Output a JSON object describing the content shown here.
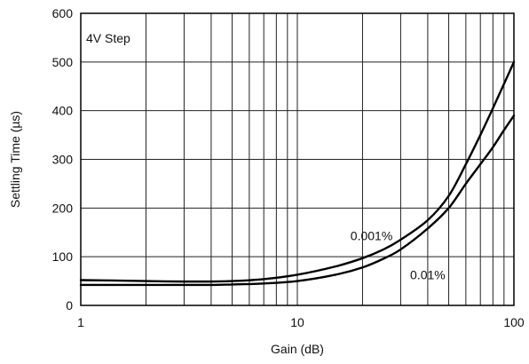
{
  "chart_data": {
    "type": "line",
    "xlabel": "Gain (dB)",
    "ylabel": "Settling Time (µs)",
    "annotation": "4V Step",
    "x_scale": "log",
    "xlim": [
      1,
      100
    ],
    "ylim": [
      0,
      600
    ],
    "x_ticks": [
      "1",
      "10",
      "100"
    ],
    "y_ticks": [
      "0",
      "100",
      "200",
      "300",
      "400",
      "500",
      "600"
    ],
    "grid": true,
    "series": [
      {
        "name": "0.001%",
        "x": [
          1,
          1.5,
          2,
          3,
          4,
          5,
          7,
          10,
          15,
          20,
          25,
          30,
          40,
          50,
          60,
          70,
          80,
          90,
          100
        ],
        "y": [
          52,
          51,
          50,
          49,
          49,
          50,
          54,
          63,
          80,
          97,
          115,
          135,
          175,
          225,
          290,
          350,
          405,
          455,
          500
        ]
      },
      {
        "name": "0.01%",
        "x": [
          1,
          1.5,
          2,
          3,
          4,
          5,
          7,
          10,
          15,
          20,
          25,
          30,
          40,
          50,
          60,
          70,
          80,
          90,
          100
        ],
        "y": [
          42,
          42,
          42,
          42,
          42,
          43,
          45,
          50,
          63,
          78,
          96,
          115,
          158,
          200,
          250,
          290,
          325,
          360,
          390
        ]
      }
    ],
    "series_label_positions": {
      "0.001%": [
        22,
        134
      ],
      "0.01%": [
        40,
        54
      ]
    }
  }
}
